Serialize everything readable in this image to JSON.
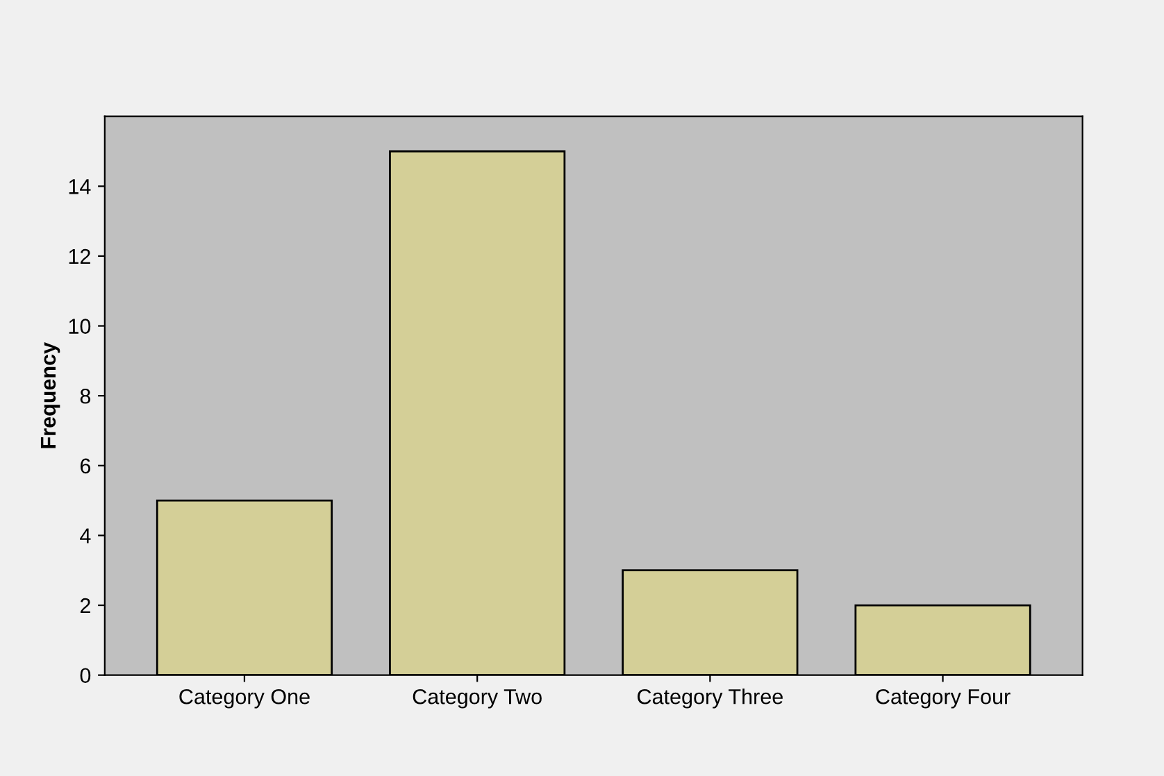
{
  "chart_data": {
    "type": "bar",
    "ylabel": "Frequency",
    "categories": [
      "Category One",
      "Category Two",
      "Category Three",
      "Category Four"
    ],
    "values": [
      5,
      15,
      3,
      2
    ],
    "color": "#d4cf97",
    "ylim": [
      0,
      16
    ],
    "yticks": [
      0,
      2,
      4,
      6,
      8,
      10,
      12,
      14
    ],
    "grid": false
  }
}
